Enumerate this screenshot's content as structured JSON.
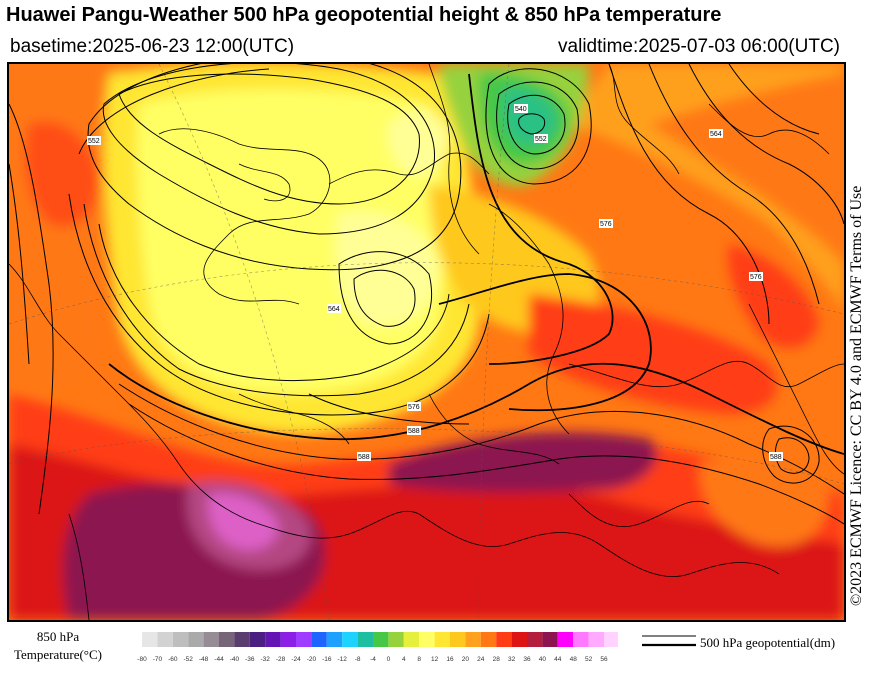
{
  "header": {
    "title": "Huawei Pangu-Weather 500 hPa geopotential height & 850 hPa temperature",
    "basetime": "basetime:2025-06-23 12:00(UTC)",
    "validtime": "validtime:2025-07-03 06:00(UTC)"
  },
  "credit": "©2023 ECMWF Licence: CC BY 4.0 and ECMWF Terms of Use",
  "legend": {
    "title_line1": "850 hPa",
    "title_line2": "Temperature(°C)",
    "line_label": "500 hPa geopotential(dm)",
    "ticks": [
      "-80",
      "-70",
      "-60",
      "-52",
      "-48",
      "-44",
      "-40",
      "-36",
      "-32",
      "-28",
      "-24",
      "-20",
      "-16",
      "-12",
      "-8",
      "-4",
      "0",
      "4",
      "8",
      "12",
      "16",
      "20",
      "24",
      "28",
      "32",
      "36",
      "40",
      "44",
      "48",
      "52",
      "56"
    ],
    "colors": [
      "#e6e6e6",
      "#d2d2d2",
      "#bebebe",
      "#aaaaaa",
      "#968c96",
      "#786478",
      "#5a3c6e",
      "#4b1e82",
      "#6414b4",
      "#8c1ee6",
      "#a03cff",
      "#1e64ff",
      "#1ea0ff",
      "#1ed2ff",
      "#1ebea0",
      "#46c846",
      "#96d23c",
      "#e6f03c",
      "#ffff64",
      "#ffe632",
      "#ffc81e",
      "#ffa01e",
      "#ff7814",
      "#ff3c14",
      "#dc1414",
      "#b41e3c",
      "#8c1450",
      "#ff00ff",
      "#ff78ff",
      "#ffaaff",
      "#ffd2ff"
    ]
  },
  "map_features": {
    "low_center_icon": "cyclone-low-icon",
    "contour_labels": [
      "552",
      "564",
      "576",
      "588",
      "588",
      "576",
      "564",
      "552",
      "540",
      "576",
      "588"
    ]
  }
}
